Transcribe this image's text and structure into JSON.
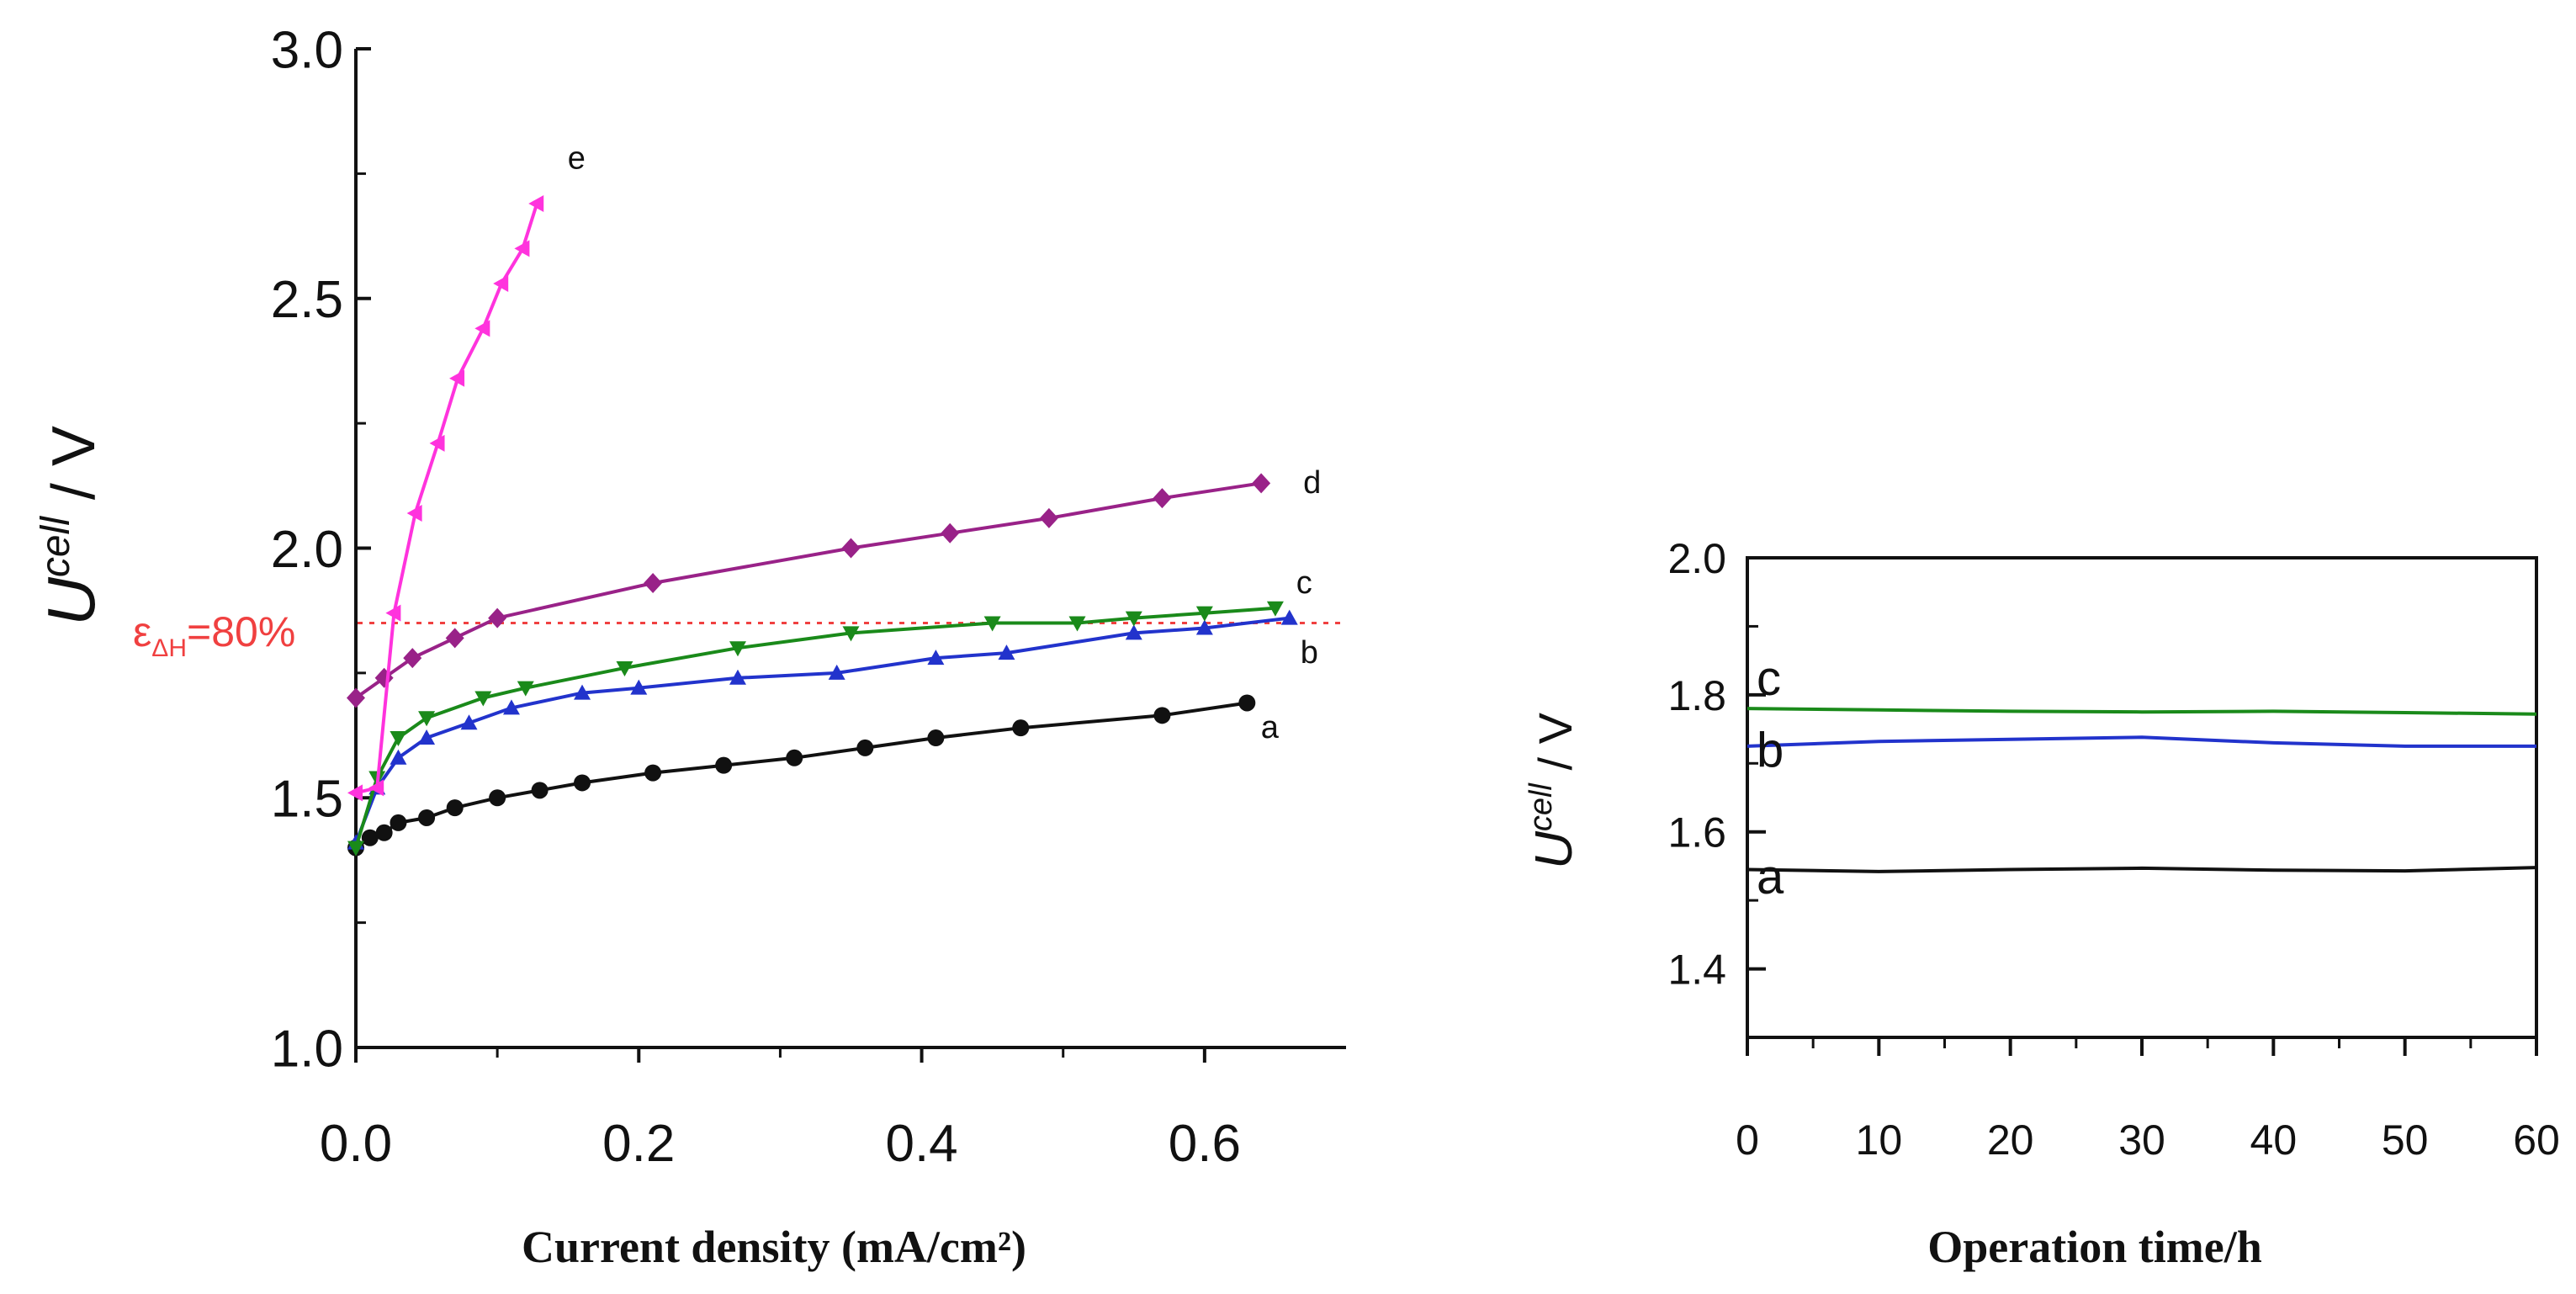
{
  "chart_data": [
    {
      "type": "line",
      "title": "",
      "xlabel": "Current density (mA/cm²)",
      "ylabel_main": "U",
      "ylabel_super": "cell",
      "ylabel_unit": " / V",
      "xlim": [
        0,
        0.7
      ],
      "ylim": [
        1.0,
        3.0
      ],
      "xticks": [
        0.0,
        0.2,
        0.4,
        0.6
      ],
      "xtick_labels": [
        "0.0",
        "0.2",
        "0.4",
        "0.6"
      ],
      "yticks": [
        1.0,
        1.5,
        2.0,
        2.5,
        3.0
      ],
      "ytick_labels": [
        "1.0",
        "1.5",
        "2.0",
        "2.5",
        "3.0"
      ],
      "grid": false,
      "reference_line": {
        "y": 1.85,
        "label_prefix": "ε",
        "label_sub": "ΔH",
        "label_value": "=80%",
        "color": "#f04040"
      },
      "series": [
        {
          "name": "a",
          "color": "#111111",
          "marker": "circle",
          "x": [
            0.0,
            0.01,
            0.02,
            0.03,
            0.05,
            0.07,
            0.1,
            0.13,
            0.16,
            0.21,
            0.26,
            0.31,
            0.36,
            0.41,
            0.47,
            0.57,
            0.63
          ],
          "y": [
            1.4,
            1.42,
            1.43,
            1.45,
            1.46,
            1.48,
            1.5,
            1.515,
            1.53,
            1.55,
            1.565,
            1.58,
            1.6,
            1.62,
            1.64,
            1.665,
            1.69
          ]
        },
        {
          "name": "b",
          "color": "#2233cc",
          "marker": "triangle-up",
          "x": [
            0.0,
            0.015,
            0.03,
            0.05,
            0.08,
            0.11,
            0.16,
            0.2,
            0.27,
            0.34,
            0.41,
            0.46,
            0.55,
            0.6,
            0.66
          ],
          "y": [
            1.41,
            1.52,
            1.58,
            1.62,
            1.65,
            1.68,
            1.71,
            1.72,
            1.74,
            1.75,
            1.78,
            1.79,
            1.83,
            1.84,
            1.86
          ]
        },
        {
          "name": "c",
          "color": "#1a8a1a",
          "marker": "triangle-down",
          "x": [
            0.0,
            0.015,
            0.03,
            0.05,
            0.09,
            0.12,
            0.19,
            0.27,
            0.35,
            0.45,
            0.51,
            0.55,
            0.6,
            0.65
          ],
          "y": [
            1.4,
            1.54,
            1.62,
            1.66,
            1.7,
            1.72,
            1.76,
            1.8,
            1.83,
            1.85,
            1.85,
            1.86,
            1.87,
            1.88
          ]
        },
        {
          "name": "d",
          "color": "#992288",
          "marker": "diamond",
          "x": [
            0.0,
            0.02,
            0.04,
            0.07,
            0.1,
            0.21,
            0.35,
            0.42,
            0.49,
            0.57,
            0.64
          ],
          "y": [
            1.7,
            1.74,
            1.78,
            1.82,
            1.86,
            1.93,
            2.0,
            2.03,
            2.06,
            2.1,
            2.13
          ]
        },
        {
          "name": "e",
          "color": "#ff33dd",
          "marker": "triangle-left",
          "x": [
            0.0,
            0.015,
            0.027,
            0.042,
            0.058,
            0.072,
            0.09,
            0.103,
            0.118,
            0.128
          ],
          "y": [
            1.51,
            1.52,
            1.87,
            2.07,
            2.21,
            2.34,
            2.44,
            2.53,
            2.6,
            2.69
          ]
        }
      ]
    },
    {
      "type": "line",
      "title": "",
      "xlabel": "Operation time/h",
      "ylabel_main": "U",
      "ylabel_super": "cell",
      "ylabel_unit": " / V",
      "xlim": [
        0,
        60
      ],
      "ylim": [
        1.3,
        2.0
      ],
      "xticks": [
        0,
        10,
        20,
        30,
        40,
        50,
        60
      ],
      "xtick_labels": [
        "0",
        "10",
        "20",
        "30",
        "40",
        "50",
        "60"
      ],
      "yticks": [
        1.4,
        1.6,
        1.8,
        2.0
      ],
      "ytick_labels": [
        "1.4",
        "1.6",
        "1.8",
        "2.0"
      ],
      "grid": false,
      "series": [
        {
          "name": "c",
          "color": "#1a8a1a",
          "x": [
            0,
            10,
            20,
            30,
            40,
            50,
            60
          ],
          "y": [
            1.78,
            1.778,
            1.776,
            1.775,
            1.776,
            1.774,
            1.772
          ]
        },
        {
          "name": "b",
          "color": "#2233cc",
          "x": [
            0,
            10,
            20,
            30,
            40,
            50,
            60
          ],
          "y": [
            1.725,
            1.732,
            1.735,
            1.738,
            1.73,
            1.725,
            1.725
          ]
        },
        {
          "name": "a",
          "color": "#111111",
          "x": [
            0,
            10,
            20,
            30,
            40,
            50,
            60
          ],
          "y": [
            1.545,
            1.542,
            1.545,
            1.547,
            1.544,
            1.543,
            1.548
          ]
        }
      ]
    }
  ]
}
